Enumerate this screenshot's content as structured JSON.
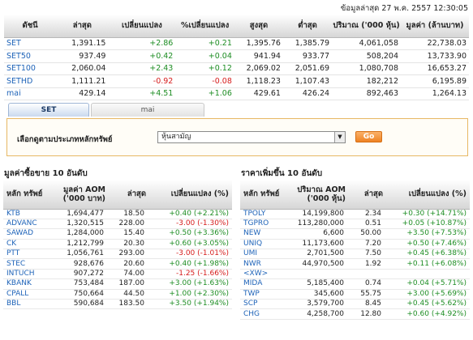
{
  "header": {
    "updated": "ข้อมูลล่าสุด 27 พ.ค. 2557 12:30:05"
  },
  "index_table": {
    "headers": [
      "ดัชนี",
      "ล่าสุด",
      "เปลี่ยนแปลง",
      "%เปลี่ยนแปลง",
      "สูงสุด",
      "ต่ำสุด",
      "ปริมาณ ('000 หุ้น)",
      "มูลค่า (ล้านบาท)"
    ],
    "rows": [
      {
        "name": "SET",
        "last": "1,391.15",
        "chg": "+2.86",
        "pct": "+0.21",
        "high": "1,395.76",
        "low": "1,385.79",
        "vol": "4,061,058",
        "val": "22,738.03",
        "dir": "up"
      },
      {
        "name": "SET50",
        "last": "937.49",
        "chg": "+0.42",
        "pct": "+0.04",
        "high": "941.94",
        "low": "933.77",
        "vol": "508,204",
        "val": "13,733.90",
        "dir": "up"
      },
      {
        "name": "SET100",
        "last": "2,060.04",
        "chg": "+2.43",
        "pct": "+0.12",
        "high": "2,069.02",
        "low": "2,051.69",
        "vol": "1,080,708",
        "val": "16,653.27",
        "dir": "up"
      },
      {
        "name": "SETHD",
        "last": "1,111.21",
        "chg": "-0.92",
        "pct": "-0.08",
        "high": "1,118.23",
        "low": "1,107.43",
        "vol": "182,212",
        "val": "6,195.89",
        "dir": "down"
      },
      {
        "name": "mai",
        "last": "429.14",
        "chg": "+4.51",
        "pct": "+1.06",
        "high": "429.61",
        "low": "426.24",
        "vol": "892,463",
        "val": "1,264.13",
        "dir": "up"
      }
    ]
  },
  "tabs": {
    "set": "SET",
    "mai": "mai"
  },
  "filter": {
    "label": "เลือกดูตามประเภทหลักทรัพย์",
    "selected": "หุ้นสามัญ",
    "go": "Go"
  },
  "left_table": {
    "title": "มูลค่าซื้อขาย 10 อันดับ",
    "headers": [
      "หลัก ทรัพย์",
      "มูลค่า AOM ('000 บาท)",
      "ล่าสุด",
      "เปลี่ยนแปลง (%)"
    ],
    "rows": [
      {
        "name": "KTB",
        "val": "1,694,477",
        "last": "18.50",
        "chg": "+0.40 (+2.21%)",
        "dir": "up"
      },
      {
        "name": "ADVANC",
        "val": "1,320,515",
        "last": "228.00",
        "chg": "-3.00 (-1.30%)",
        "dir": "down"
      },
      {
        "name": "SAWAD",
        "val": "1,284,000",
        "last": "15.40",
        "chg": "+0.50 (+3.36%)",
        "dir": "up"
      },
      {
        "name": "CK",
        "val": "1,212,799",
        "last": "20.30",
        "chg": "+0.60 (+3.05%)",
        "dir": "up"
      },
      {
        "name": "PTT",
        "val": "1,056,761",
        "last": "293.00",
        "chg": "-3.00 (-1.01%)",
        "dir": "down"
      },
      {
        "name": "STEC",
        "val": "928,676",
        "last": "20.60",
        "chg": "+0.40 (+1.98%)",
        "dir": "up"
      },
      {
        "name": "INTUCH",
        "val": "907,272",
        "last": "74.00",
        "chg": "-1.25 (-1.66%)",
        "dir": "down"
      },
      {
        "name": "KBANK",
        "val": "753,484",
        "last": "187.00",
        "chg": "+3.00 (+1.63%)",
        "dir": "up"
      },
      {
        "name": "CPALL",
        "val": "750,664",
        "last": "44.50",
        "chg": "+1.00 (+2.30%)",
        "dir": "up"
      },
      {
        "name": "BBL",
        "val": "590,684",
        "last": "183.50",
        "chg": "+3.50 (+1.94%)",
        "dir": "up"
      }
    ]
  },
  "right_table": {
    "title": "ราคาเพิ่มขึ้น 10 อันดับ",
    "headers": [
      "หลัก ทรัพย์",
      "ปริมาณ AOM ('000 หุ้น)",
      "ล่าสุด",
      "เปลี่ยนแปลง (%)"
    ],
    "rows": [
      {
        "name": "TPOLY",
        "val": "14,199,800",
        "last": "2.34",
        "chg": "+0.30 (+14.71%)",
        "dir": "up"
      },
      {
        "name": "TGPRO",
        "val": "113,280,000",
        "last": "0.51",
        "chg": "+0.05 (+10.87%)",
        "dir": "up"
      },
      {
        "name": "NEW",
        "val": "6,600",
        "last": "50.00",
        "chg": "+3.50 (+7.53%)",
        "dir": "up"
      },
      {
        "name": "UNIQ",
        "val": "11,173,600",
        "last": "7.20",
        "chg": "+0.50 (+7.46%)",
        "dir": "up"
      },
      {
        "name": "UMI",
        "val": "2,701,500",
        "last": "7.50",
        "chg": "+0.45 (+6.38%)",
        "dir": "up"
      },
      {
        "name": "NWR",
        "val": "44,970,500",
        "last": "1.92",
        "chg": "+0.11 (+6.08%)",
        "dir": "up"
      },
      {
        "name": "<XW>",
        "val": "",
        "last": "",
        "chg": "",
        "dir": "none"
      },
      {
        "name": "MIDA",
        "val": "5,185,400",
        "last": "0.74",
        "chg": "+0.04 (+5.71%)",
        "dir": "up"
      },
      {
        "name": "TWP",
        "val": "345,600",
        "last": "55.75",
        "chg": "+3.00 (+5.69%)",
        "dir": "up"
      },
      {
        "name": "SCP",
        "val": "3,579,700",
        "last": "8.45",
        "chg": "+0.45 (+5.62%)",
        "dir": "up"
      },
      {
        "name": "CHG",
        "val": "4,258,700",
        "last": "12.80",
        "chg": "+0.60 (+4.92%)",
        "dir": "up"
      }
    ]
  }
}
